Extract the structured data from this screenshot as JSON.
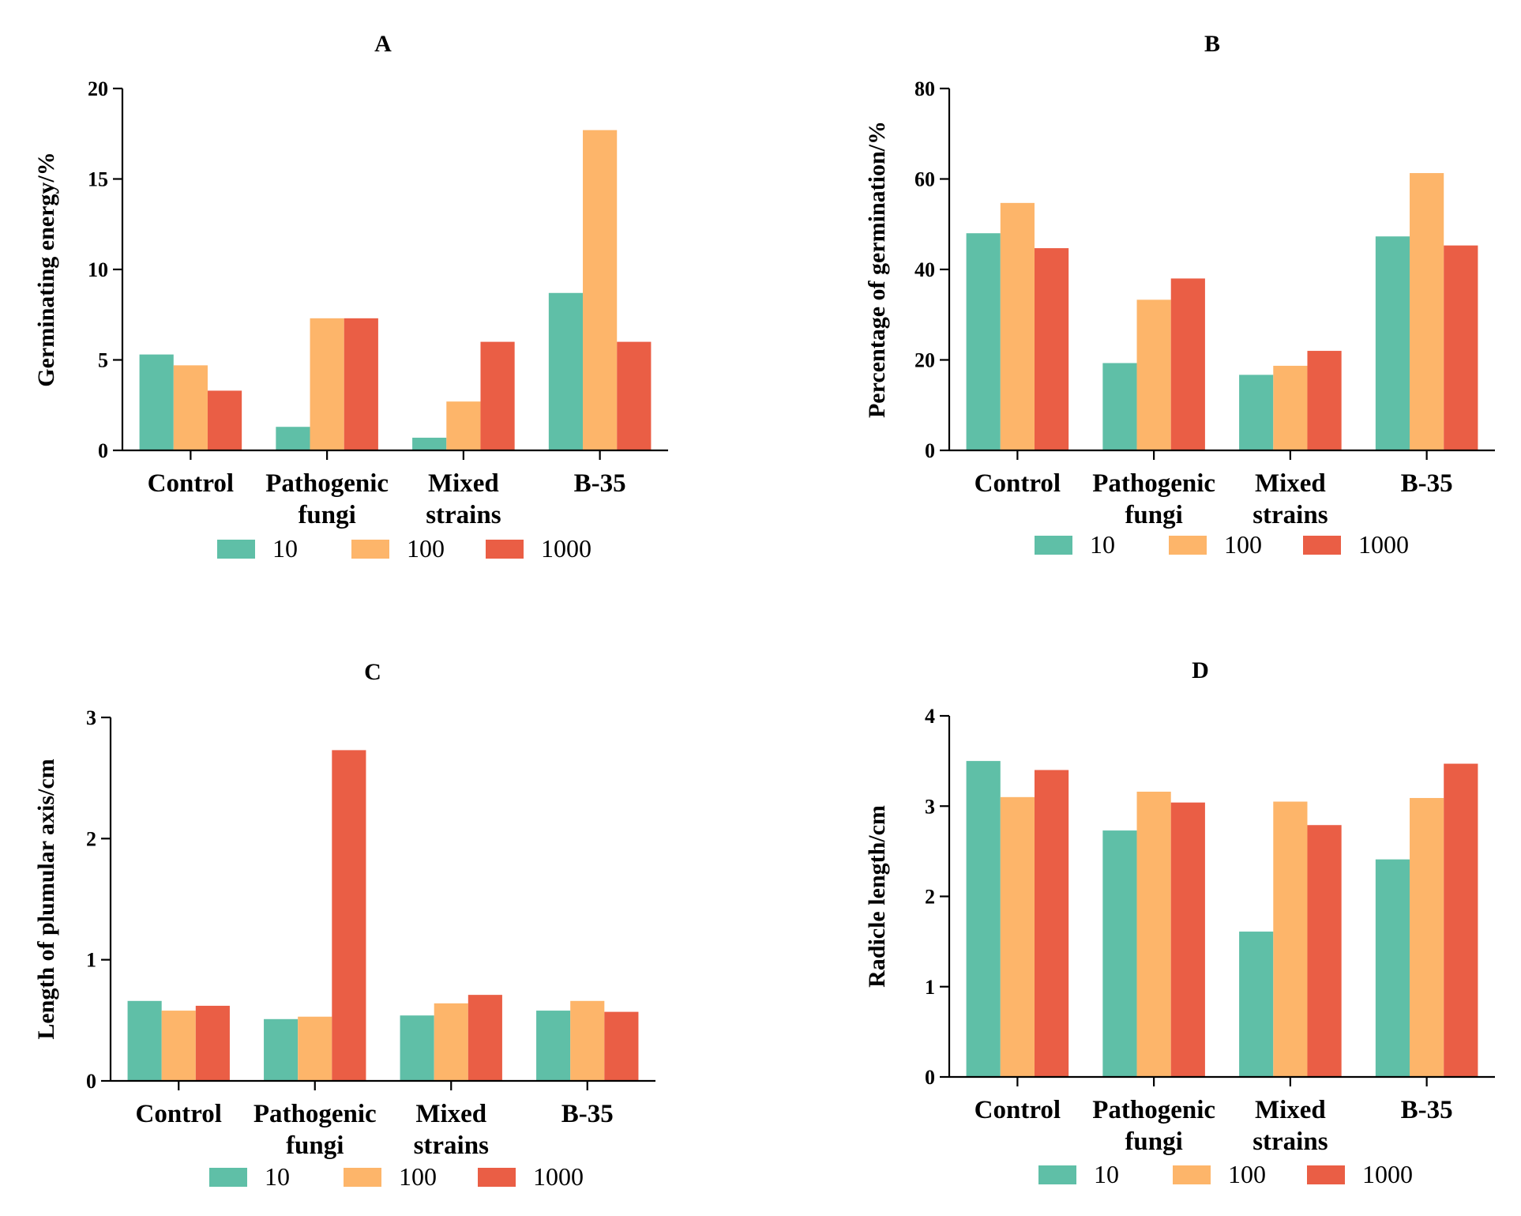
{
  "legend": {
    "items": [
      {
        "label": "10",
        "color": "#5fbfa7"
      },
      {
        "label": "100",
        "color": "#fdb56a"
      },
      {
        "label": "1000",
        "color": "#ea5e45"
      }
    ]
  },
  "chart_data": [
    {
      "type": "bar",
      "title": "A",
      "ylabel": "Germinating energy/%",
      "ylim": [
        0,
        20
      ],
      "yticks": [
        0,
        5,
        10,
        15,
        20
      ],
      "categories": [
        [
          "Control"
        ],
        [
          "Pathogenic",
          "fungi"
        ],
        [
          "Mixed",
          "strains"
        ],
        [
          "B-35"
        ]
      ],
      "series": [
        {
          "name": "10",
          "values": [
            5.3,
            1.3,
            0.7,
            8.7
          ]
        },
        {
          "name": "100",
          "values": [
            4.7,
            7.3,
            2.7,
            17.7
          ]
        },
        {
          "name": "1000",
          "values": [
            3.3,
            7.3,
            6.0,
            6.0
          ]
        }
      ]
    },
    {
      "type": "bar",
      "title": "B",
      "ylabel": "Percentage of germination/%",
      "ylim": [
        0,
        80
      ],
      "yticks": [
        0,
        20,
        40,
        60,
        80
      ],
      "categories": [
        [
          "Control"
        ],
        [
          "Pathogenic",
          "fungi"
        ],
        [
          "Mixed",
          "strains"
        ],
        [
          "B-35"
        ]
      ],
      "series": [
        {
          "name": "10",
          "values": [
            48,
            19.3,
            16.7,
            47.3
          ]
        },
        {
          "name": "100",
          "values": [
            54.7,
            33.3,
            18.7,
            61.3
          ]
        },
        {
          "name": "1000",
          "values": [
            44.7,
            38,
            22,
            45.3
          ]
        }
      ]
    },
    {
      "type": "bar",
      "title": "C",
      "ylabel": "Length of plumular axis/cm",
      "ylim": [
        0,
        3
      ],
      "yticks": [
        0,
        1,
        2,
        3
      ],
      "categories": [
        [
          "Control"
        ],
        [
          "Pathogenic",
          "fungi"
        ],
        [
          "Mixed",
          "strains"
        ],
        [
          "B-35"
        ]
      ],
      "series": [
        {
          "name": "10",
          "values": [
            0.66,
            0.51,
            0.54,
            0.58
          ]
        },
        {
          "name": "100",
          "values": [
            0.58,
            0.53,
            0.64,
            0.66
          ]
        },
        {
          "name": "1000",
          "values": [
            0.62,
            2.73,
            0.71,
            0.57
          ]
        }
      ]
    },
    {
      "type": "bar",
      "title": "D",
      "ylabel": "Radicle length/cm",
      "ylim": [
        0,
        4
      ],
      "yticks": [
        0,
        1,
        2,
        3,
        4
      ],
      "categories": [
        [
          "Control"
        ],
        [
          "Pathogenic",
          "fungi"
        ],
        [
          "Mixed",
          "strains"
        ],
        [
          "B-35"
        ]
      ],
      "series": [
        {
          "name": "10",
          "values": [
            3.5,
            2.73,
            1.61,
            2.41
          ]
        },
        {
          "name": "100",
          "values": [
            3.1,
            3.16,
            3.05,
            3.09
          ]
        },
        {
          "name": "1000",
          "values": [
            3.4,
            3.04,
            2.79,
            3.47
          ]
        }
      ]
    }
  ]
}
